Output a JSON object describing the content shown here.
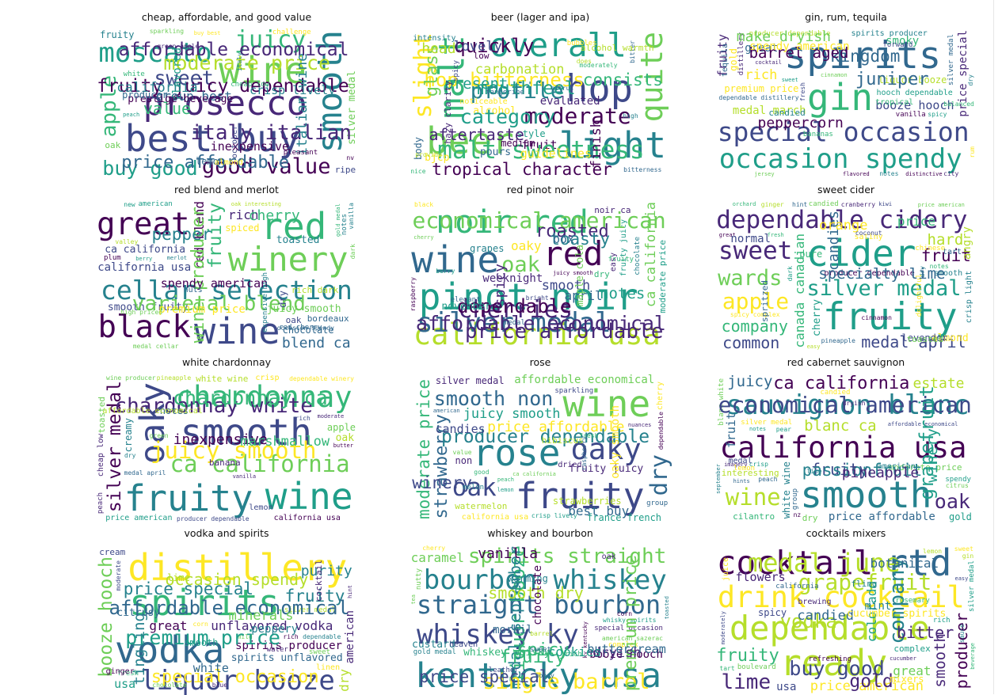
{
  "palette": [
    "#440154",
    "#482878",
    "#3e4989",
    "#31688e",
    "#26828e",
    "#1f9e89",
    "#35b779",
    "#6ece58",
    "#b5de2b",
    "#fde725"
  ],
  "panels": [
    {
      "title": "cheap, affordable, and good value",
      "words": [
        "wine",
        "best buy",
        "prosecco",
        "smooth",
        "moscato",
        "juicy",
        "good value",
        "buy good",
        "apple",
        "sweet",
        "white",
        "fruity",
        "buy best",
        "silver medal",
        "sparkling",
        "fruity juicy dependable",
        "italy italian",
        "moderate price",
        "affordable economical",
        "price affordable",
        "oak",
        "value",
        "peach",
        "italian wine",
        "california",
        "group best",
        "crisp lively",
        "inexpensive",
        "flavored",
        "prestige beverage",
        "producer",
        "lemon",
        "ripe",
        "october",
        "almond",
        "challenge",
        "cheap low",
        "pleasant",
        "italy",
        "nv",
        "green apple"
      ]
    },
    {
      "title": "beer (lager and ipa)",
      "words": [
        "beer",
        "hop",
        "light",
        "malt",
        "tropical character",
        "overall",
        "moderate",
        "carbonation",
        "quite",
        "profile",
        "alcohol",
        "bitterness",
        "fruit",
        "slight",
        "malt sweetness",
        "style",
        "low",
        "moderately",
        "body",
        "category",
        "quickly",
        "hop bitterness",
        "mouthfeel",
        "glass",
        "consists",
        "aftertaste",
        "present",
        "head",
        "finish",
        "lovely",
        "nice",
        "guidelines",
        "evaluated",
        "bitter",
        "pours",
        "bjcp",
        "medium",
        "alcohol warmth",
        "hazy clarity",
        "noticeable",
        "intensity",
        "bubbles",
        "tangerine",
        "spicy",
        "provide",
        "citrus",
        "does",
        "high"
      ]
    },
    {
      "title": "gin, rum, tequila",
      "words": [
        "gin",
        "spirits",
        "special occasion",
        "price special",
        "occasion spendy",
        "booze hooch",
        "liquor booze",
        "premium price",
        "distillery",
        "spirits producer",
        "hooch dependable",
        "producer dependable",
        "dependable distillery",
        "silver medal",
        "medal march",
        "cocktail",
        "rich",
        "great",
        "fruity",
        "spicy",
        "vanilla",
        "juniper",
        "kingdom",
        "rum",
        "barrel aged",
        "make dryish",
        "peppercorn",
        "flavored",
        "gold",
        "jersey",
        "spendy american",
        "smoky",
        "sweet",
        "dry",
        "city",
        "distinctive",
        "candied",
        "tropical",
        "tequila",
        "bananas",
        "forward",
        "cinnamon",
        "notes",
        "fresh",
        "balanced"
      ]
    },
    {
      "title": "red blend and merlot",
      "words": [
        "red",
        "cellar selection",
        "wine",
        "red blend",
        "winery",
        "black",
        "great",
        "blend ca",
        "fruity",
        "ca california",
        "california usa",
        "juicy smooth",
        "chocolate",
        "wine producer",
        "smooth fruity",
        "spiced",
        "bordeaux",
        "varietal blend",
        "gold medal",
        "medal cellar",
        "american",
        "rich",
        "pepper",
        "vanilla",
        "oak",
        "cherry",
        "berry",
        "new",
        "notes",
        "spendy american",
        "premium price",
        "oak interesting",
        "toasted",
        "dry",
        "plum",
        "rich dark",
        "nuts",
        "valley",
        "expensive high",
        "red cherry",
        "merlot",
        "high priced",
        "occasion spendy",
        "dark"
      ]
    },
    {
      "title": "red pinot noir",
      "words": [
        "pinot noir",
        "wine",
        "california usa",
        "ca california",
        "red",
        "noir red",
        "noir ca",
        "oak",
        "fruity juicy",
        "silver medal",
        "juicy smooth",
        "oaky",
        "cherries",
        "moderate price",
        "economical american",
        "price affordable",
        "affordable economical",
        "dependable",
        "chocolate",
        "roasted",
        "toasty",
        "black",
        "notes",
        "spicy",
        "smooth",
        "april",
        "box",
        "weeknight",
        "maple cola",
        "november",
        "grapes",
        "cherry",
        "dry",
        "easy",
        "elegant",
        "fruity",
        "medal",
        "berry",
        "raspberry",
        "bright"
      ]
    },
    {
      "title": "sweet cider",
      "words": [
        "cider",
        "fruity",
        "dependable cidery",
        "canada canadian",
        "silver medal",
        "apple",
        "medal april",
        "sweet",
        "producer dependable",
        "wards",
        "company",
        "common",
        "fruit",
        "crisp light",
        "price american",
        "spicy complex",
        "hard",
        "pineapple",
        "cherry",
        "smooth",
        "candied",
        "ginger",
        "kiwi",
        "dry",
        "great",
        "notes",
        "specialty lime",
        "orchard",
        "candies",
        "orange",
        "cranberry",
        "price",
        "fresh",
        "angry",
        "normal",
        "almond",
        "levender",
        "pure",
        "spritzed",
        "toasted",
        "satiny",
        "tart",
        "easy",
        "delightful",
        "chinese",
        "cinnamon",
        "coconut",
        "hint",
        "dark"
      ]
    },
    {
      "title": "white chardonnay",
      "words": [
        "wine",
        "smooth",
        "fruity",
        "oaky",
        "chardonnay",
        "ca california",
        "price american",
        "california usa",
        "silver medal",
        "white wine",
        "producer dependable",
        "wine producer",
        "juicy smooth",
        "dependable winery",
        "chardonnay white",
        "chardonnay ca",
        "medal april",
        "apple",
        "toasted",
        "pineapple",
        "moderate",
        "inexpensive",
        "marshmallow",
        "cheap low",
        "butter",
        "crisp",
        "oak",
        "notes",
        "creamy",
        "banana",
        "lemon",
        "affordable economical",
        "vanilla",
        "peach",
        "green",
        "dry",
        "rich"
      ]
    },
    {
      "title": "rose",
      "words": [
        "rose",
        "wine",
        "fruity",
        "moderate price",
        "price affordable",
        "affordable economical",
        "smooth non",
        "oaky",
        "strawberry",
        "juicy smooth",
        "fruity juicy",
        "silver medal",
        "oak",
        "dry",
        "france french",
        "watermelon",
        "california usa",
        "ca california",
        "producer dependable",
        "crisp lively",
        "winery",
        "non",
        "american",
        "dependable",
        "group",
        "best buy",
        "candies",
        "peach",
        "oaky smooth",
        "nuances",
        "strawberries",
        "good",
        "hibiscus",
        "cherry",
        "dried",
        "melon",
        "lemon",
        "sparkling",
        "raspberry",
        "value",
        "fresh"
      ]
    },
    {
      "title": "red cabernet sauvignon",
      "words": [
        "sauvignon blanc",
        "smooth",
        "california usa",
        "white wine",
        "ca california",
        "wine",
        "juicy",
        "fruity",
        "blanc white",
        "blanc ca",
        "price affordable",
        "affordable economical",
        "moderate price",
        "economical american",
        "silver medal",
        "estate",
        "interesting",
        "oak",
        "grapefruit",
        "cilantro",
        "peach",
        "passionfruit",
        "citrus",
        "winery",
        "pineapple",
        "spendy",
        "dry",
        "gold",
        "fruit",
        "nz",
        "imagery",
        "hints",
        "crisp",
        "september",
        "notes",
        "american",
        "medal",
        "candied",
        "group",
        "lemon",
        "lime",
        "pear",
        "dryish"
      ]
    },
    {
      "title": "vodka and spirits",
      "words": [
        "vodka",
        "distillery",
        "spirits",
        "booze hooch",
        "liquor booze",
        "unflavored vodka",
        "spirits unflavored",
        "spirits producer",
        "american",
        "fruity",
        "great",
        "dependable",
        "silver medal",
        "dry",
        "usa",
        "cream",
        "mild",
        "premium price",
        "affordable economical",
        "fresh",
        "special occasion",
        "price special",
        "occasion spendy",
        "tingling",
        "purity",
        "minerals",
        "rich",
        "white",
        "moderate",
        "peppery",
        "citrusy",
        "lime",
        "smooth",
        "cocktail",
        "ginger",
        "linen",
        "sweet",
        "water",
        "hint",
        "blue",
        "corn",
        "chocolate"
      ]
    },
    {
      "title": "whiskey and bourbon",
      "words": [
        "straight bourbon",
        "bourbon whiskey",
        "kentucky usa",
        "ky kentucky",
        "whiskey ky",
        "spirits straight",
        "whiskey whisky",
        "booze hooch",
        "liquor booze",
        "special occasion",
        "american sazerac",
        "caramel",
        "complex",
        "medal september",
        "gold medal",
        "single barrel",
        "whisky spirits",
        "rich",
        "premium price",
        "fruity",
        "spicy",
        "price special",
        "smooth dry",
        "toasted",
        "vanilla",
        "dryish",
        "cookies",
        "buttercream",
        "chocolate",
        "morbil",
        "custard",
        "warming",
        "cherry",
        "tea",
        "oak",
        "heaven",
        "sweet",
        "leather",
        "nutty",
        "honey",
        "corn",
        "barrel"
      ]
    },
    {
      "title": "cocktails mixers",
      "words": [
        "rtd",
        "drink cocktail",
        "ready",
        "producer",
        "dependable",
        "cocktail",
        "fruity",
        "price american",
        "smooth",
        "lime",
        "complex",
        "great",
        "medal june",
        "silver medal",
        "usa",
        "boulevard",
        "grapefruit",
        "cucumber",
        "company",
        "buy good",
        "vodka",
        "gold",
        "gin",
        "beverage",
        "bitter",
        "rich",
        "sweet",
        "candied",
        "colorado",
        "botanical",
        "flowers",
        "mint",
        "cucumber spirits",
        "moderately",
        "spicy",
        "mixers",
        "easy",
        "fling",
        "juice",
        "brewing",
        "refreshing",
        "rosemary",
        "california",
        "sauce",
        "lemon",
        "tart"
      ]
    }
  ]
}
